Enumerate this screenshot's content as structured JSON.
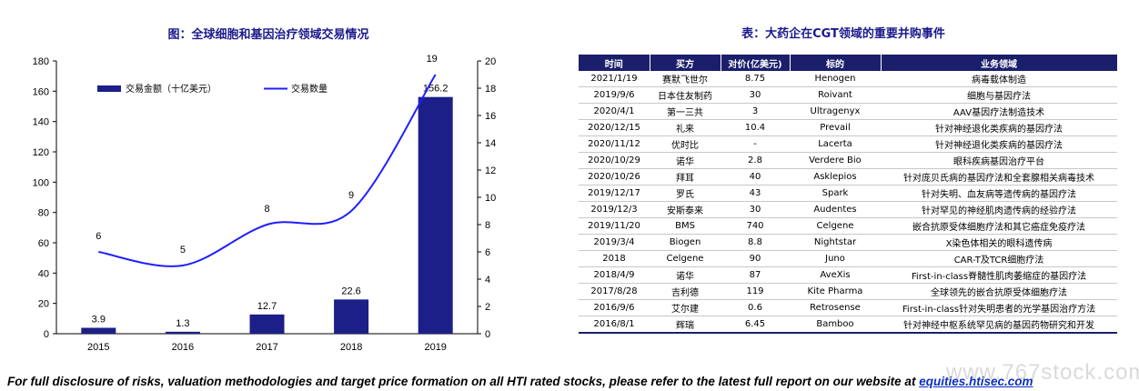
{
  "chart_data": {
    "type": "bar",
    "title": "图：全球细胞和基因治疗领域交易情况",
    "categories": [
      "2015",
      "2016",
      "2017",
      "2018",
      "2019"
    ],
    "series": [
      {
        "name": "交易金额（十亿美元）",
        "type": "bar",
        "axis": "left",
        "values": [
          3.9,
          1.3,
          12.7,
          22.6,
          156.2
        ],
        "labels": [
          "3.9",
          "1.3",
          "12.7",
          "22.6",
          "156.2"
        ],
        "color": "#1b1f87"
      },
      {
        "name": "交易数量",
        "type": "line",
        "axis": "right",
        "values": [
          6,
          5,
          8,
          9,
          19
        ],
        "labels": [
          "6",
          "5",
          "8",
          "9",
          "19"
        ],
        "color": "#1f1fff"
      }
    ],
    "ylim": [
      0,
      180
    ],
    "y2lim": [
      0,
      20
    ],
    "yticks": [
      "0",
      "20",
      "40",
      "60",
      "80",
      "100",
      "120",
      "140",
      "160",
      "180"
    ],
    "y2ticks": [
      "0",
      "2",
      "4",
      "6",
      "8",
      "10",
      "12",
      "14",
      "16",
      "18",
      "20"
    ],
    "grid": false,
    "legend_position": "top-left"
  },
  "table": {
    "title": "表：大药企在CGT领域的重要并购事件",
    "columns": [
      "时间",
      "买方",
      "对价(亿美元)",
      "标的",
      "业务领域"
    ],
    "rows": [
      [
        "2021/1/19",
        "赛默飞世尔",
        "8.75",
        "Henogen",
        "病毒载体制造"
      ],
      [
        "2019/9/6",
        "日本住友制药",
        "30",
        "Roivant",
        "细胞与基因疗法"
      ],
      [
        "2020/4/1",
        "第一三共",
        "3",
        "Ultragenyx",
        "AAV基因疗法制造技术"
      ],
      [
        "2020/12/15",
        "礼来",
        "10.4",
        "Prevail",
        "针对神经退化类疾病的基因疗法"
      ],
      [
        "2020/11/12",
        "优时比",
        "-",
        "Lacerta",
        "针对神经退化类疾病的基因疗法"
      ],
      [
        "2020/10/29",
        "诺华",
        "2.8",
        "Verdere Bio",
        "眼科疾病基因治疗平台"
      ],
      [
        "2020/10/26",
        "拜耳",
        "40",
        "Asklepios",
        "针对庞贝氏病的基因疗法和全套腺相关病毒技术"
      ],
      [
        "2019/12/17",
        "罗氏",
        "43",
        "Spark",
        "针对失明、血友病等遗传病的基因疗法"
      ],
      [
        "2019/12/3",
        "安斯泰来",
        "30",
        "Audentes",
        "针对罕见的神经肌肉遗传病的经验疗法"
      ],
      [
        "2019/11/20",
        "BMS",
        "740",
        "Celgene",
        "嵌合抗原受体细胞疗法和其它癌症免疫疗法"
      ],
      [
        "2019/3/4",
        "Biogen",
        "8.8",
        "Nightstar",
        "X染色体相关的眼科遗传病"
      ],
      [
        "2018",
        "Celgene",
        "90",
        "Juno",
        "CAR-T及TCR细胞疗法"
      ],
      [
        "2018/4/9",
        "诺华",
        "87",
        "AveXis",
        "First-in-class脊髓性肌肉萎缩症的基因疗法"
      ],
      [
        "2017/8/28",
        "吉利德",
        "119",
        "Kite Pharma",
        "全球领先的嵌合抗原受体细胞疗法"
      ],
      [
        "2016/9/6",
        "艾尔建",
        "0.6",
        "Retrosense",
        "First-in-class针对失明患者的光学基因治疗方法"
      ],
      [
        "2016/8/1",
        "辉瑞",
        "6.45",
        "Bamboo",
        "针对神经中枢系统罕见病的基因药物研究和开发"
      ]
    ]
  },
  "footer": {
    "text": "For full disclosure of risks, valuation methodologies and target price formation on all HTI rated stocks, please refer to the latest full report on our website at ",
    "link": "equities.htisec.com"
  },
  "watermark": "www.767stock.com"
}
